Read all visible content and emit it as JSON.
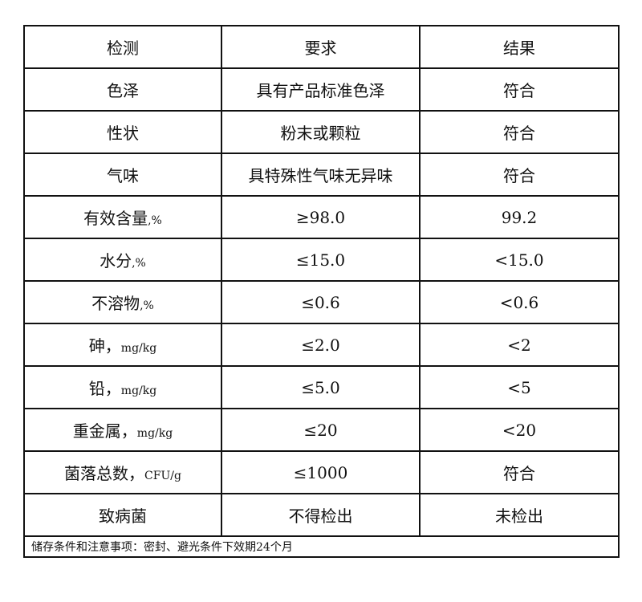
{
  "header": {
    "item": "检测",
    "requirement": "要求",
    "result": "结果"
  },
  "rows": [
    {
      "item": "色泽",
      "unit": "",
      "requirement": "具有产品标准色泽",
      "result": "符合"
    },
    {
      "item": "性状",
      "unit": "",
      "requirement": "粉末或颗粒",
      "result": "符合"
    },
    {
      "item": "气味",
      "unit": "",
      "requirement": "具特殊性气味无异味",
      "result": "符合"
    },
    {
      "item": "有效含量",
      "unit": ",%",
      "requirement": "≥98.0",
      "result": "99.2"
    },
    {
      "item": "水分",
      "unit": ",%",
      "requirement": "≤15.0",
      "result": "<15.0"
    },
    {
      "item": "不溶物",
      "unit": ",%",
      "requirement": "≤0.6",
      "result": "<0.6"
    },
    {
      "item": "砷，",
      "unit": "mg/kg",
      "requirement": "≤2.0",
      "result": "<2"
    },
    {
      "item": "铅，",
      "unit": "mg/kg",
      "requirement": "≤5.0",
      "result": "<5"
    },
    {
      "item": "重金属，",
      "unit": "mg/kg",
      "requirement": "≤20",
      "result": "<20"
    },
    {
      "item": "菌落总数，",
      "unit": "CFU/g",
      "requirement": "≤1000",
      "result": "符合"
    },
    {
      "item": "致病菌",
      "unit": "",
      "requirement": "不得检出",
      "result": "未检出"
    }
  ],
  "footer": "储存条件和注意事项：密封、避光条件下效期24个月"
}
